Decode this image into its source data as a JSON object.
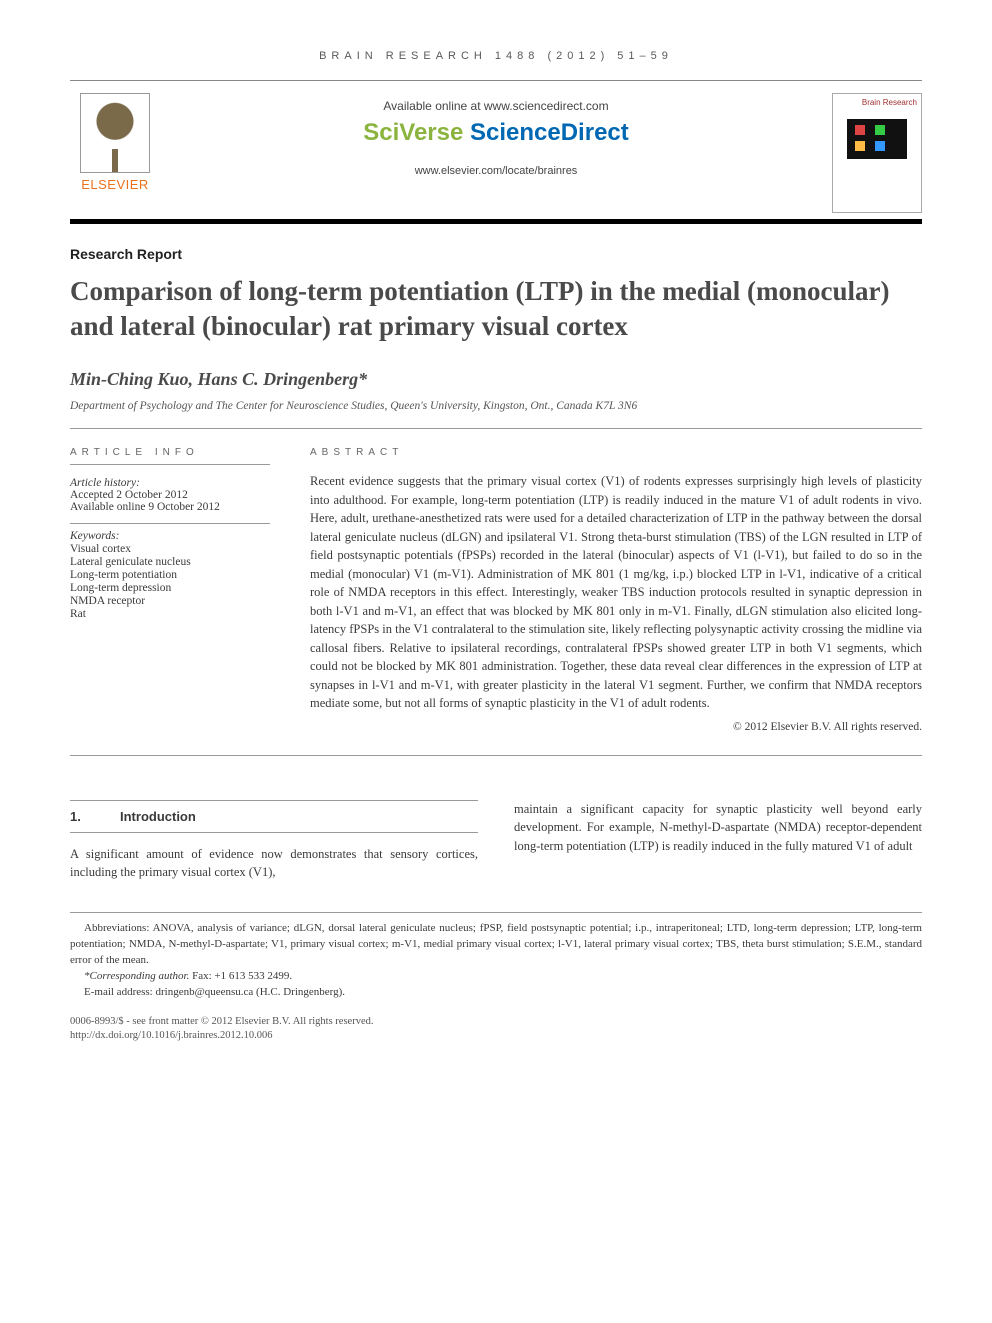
{
  "running_head": "BRAIN RESEARCH 1488 (2012) 51–59",
  "header": {
    "publisher_word": "ELSEVIER",
    "available_text": "Available online at www.sciencedirect.com",
    "sciverse_prefix": "SciVerse",
    "sciverse_main": " ScienceDirect",
    "journal_url": "www.elsevier.com/locate/brainres",
    "journal_cover_title": "Brain Research"
  },
  "article_type": "Research Report",
  "title": "Comparison of long-term potentiation (LTP) in the medial (monocular) and lateral (binocular) rat primary visual cortex",
  "authors": "Min-Ching Kuo, Hans C. Dringenberg*",
  "affiliation": "Department of Psychology and The Center for Neuroscience Studies, Queen's University, Kingston, Ont., Canada K7L 3N6",
  "article_info": {
    "head": "ARTICLE INFO",
    "history_label": "Article history:",
    "accepted": "Accepted 2 October 2012",
    "online": "Available online 9 October 2012",
    "keywords_label": "Keywords:",
    "keywords": [
      "Visual cortex",
      "Lateral geniculate nucleus",
      "Long-term potentiation",
      "Long-term depression",
      "NMDA receptor",
      "Rat"
    ]
  },
  "abstract": {
    "head": "ABSTRACT",
    "text": "Recent evidence suggests that the primary visual cortex (V1) of rodents expresses surprisingly high levels of plasticity into adulthood. For example, long-term potentiation (LTP) is readily induced in the mature V1 of adult rodents in vivo. Here, adult, urethane-anesthetized rats were used for a detailed characterization of LTP in the pathway between the dorsal lateral geniculate nucleus (dLGN) and ipsilateral V1. Strong theta-burst stimulation (TBS) of the LGN resulted in LTP of field postsynaptic potentials (fPSPs) recorded in the lateral (binocular) aspects of V1 (l-V1), but failed to do so in the medial (monocular) V1 (m-V1). Administration of MK 801 (1 mg/kg, i.p.) blocked LTP in l-V1, indicative of a critical role of NMDA receptors in this effect. Interestingly, weaker TBS induction protocols resulted in synaptic depression in both l-V1 and m-V1, an effect that was blocked by MK 801 only in m-V1. Finally, dLGN stimulation also elicited long-latency fPSPs in the V1 contralateral to the stimulation site, likely reflecting polysynaptic activity crossing the midline via callosal fibers. Relative to ipsilateral recordings, contralateral fPSPs showed greater LTP in both V1 segments, which could not be blocked by MK 801 administration. Together, these data reveal clear differences in the expression of LTP at synapses in l-V1 and m-V1, with greater plasticity in the lateral V1 segment. Further, we confirm that NMDA receptors mediate some, but not all forms of synaptic plasticity in the V1 of adult rodents.",
    "copyright": "© 2012 Elsevier B.V. All rights reserved."
  },
  "section1": {
    "num": "1.",
    "title": "Introduction",
    "para_col1": "A significant amount of evidence now demonstrates that sensory cortices, including the primary visual cortex (V1),",
    "para_col2": "maintain a significant capacity for synaptic plasticity well beyond early development. For example, N-methyl-D-aspartate (NMDA) receptor-dependent long-term potentiation (LTP) is readily induced in the fully matured V1 of adult"
  },
  "footnotes": {
    "abbrev": "Abbreviations: ANOVA, analysis of variance; dLGN, dorsal lateral geniculate nucleus; fPSP, field postsynaptic potential; i.p., intraperitoneal; LTD, long-term depression; LTP, long-term potentiation; NMDA, N-methyl-D-aspartate; V1, primary visual cortex; m-V1, medial primary visual cortex; l-V1, lateral primary visual cortex; TBS, theta burst stimulation; S.E.M., standard error of the mean.",
    "corresponding_label": "*Corresponding author.",
    "corresponding_fax": " Fax: +1 613 533 2499.",
    "email_label": "E-mail address: ",
    "email": "dringenb@queensu.ca",
    "email_tail": " (H.C. Dringenberg)."
  },
  "footer": {
    "line1": "0006-8993/$ - see front matter © 2012 Elsevier B.V. All rights reserved.",
    "line2": "http://dx.doi.org/10.1016/j.brainres.2012.10.006"
  },
  "colors": {
    "elsevier_orange": "#e9711c",
    "sciverse_blue": "#0068b3",
    "sciverse_green": "#8bb43f",
    "text_gray": "#4a4a4a",
    "rule_gray": "#999999"
  },
  "typography": {
    "title_size_pt": 20,
    "author_size_pt": 14,
    "body_size_pt": 9.5,
    "abstract_size_pt": 9.5,
    "footnote_size_pt": 8
  }
}
